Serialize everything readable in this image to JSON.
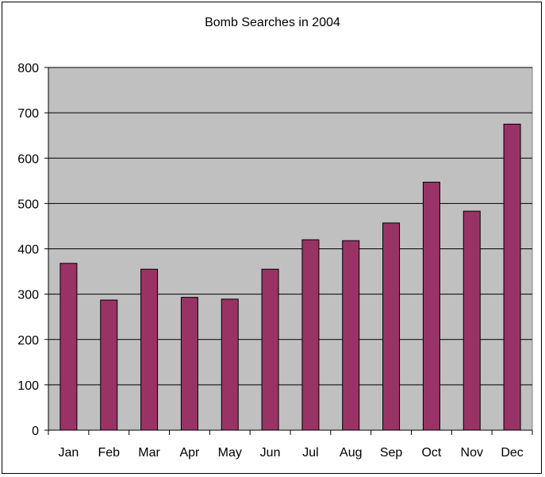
{
  "chart_data": {
    "type": "bar",
    "title": "Bomb Searches in 2004",
    "categories": [
      "Jan",
      "Feb",
      "Mar",
      "Apr",
      "May",
      "Jun",
      "Jul",
      "Aug",
      "Sep",
      "Oct",
      "Nov",
      "Dec"
    ],
    "values": [
      368,
      287,
      355,
      293,
      289,
      355,
      420,
      418,
      457,
      547,
      483,
      675
    ],
    "ylim": [
      0,
      800
    ],
    "yticks": [
      0,
      100,
      200,
      300,
      400,
      500,
      600,
      700,
      800
    ],
    "grid": true,
    "legend": "none",
    "colors": {
      "bar_fill": "#993366",
      "plot_background": "#C0C0C0",
      "gridline": "#000000"
    }
  }
}
